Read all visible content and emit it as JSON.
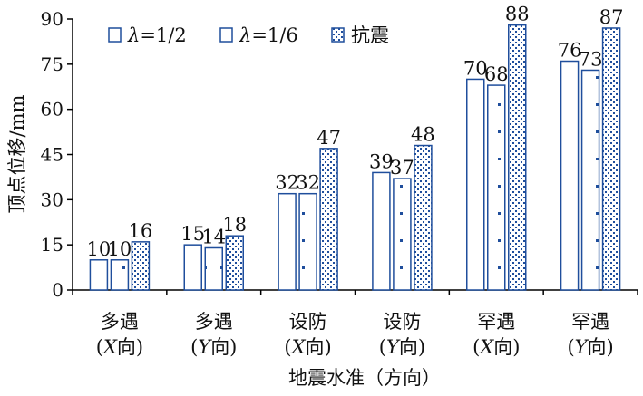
{
  "chart_data": {
    "type": "bar",
    "title": "",
    "xlabel": "地震水准（方向）",
    "ylabel": "顶点位移/mm",
    "ylim": [
      0,
      90
    ],
    "yticks": [
      0,
      15,
      30,
      45,
      60,
      75,
      90
    ],
    "grid": false,
    "legend_position": "top-left",
    "categories": [
      {
        "line1": "多遇",
        "line2_prefix": "(",
        "line2_axis": "X",
        "line2_suffix": "向)"
      },
      {
        "line1": "多遇",
        "line2_prefix": "(",
        "line2_axis": "Y",
        "line2_suffix": "向)"
      },
      {
        "line1": "设防",
        "line2_prefix": "(",
        "line2_axis": "X",
        "line2_suffix": "向)"
      },
      {
        "line1": "设防",
        "line2_prefix": "(",
        "line2_axis": "Y",
        "line2_suffix": "向)"
      },
      {
        "line1": "罕遇",
        "line2_prefix": "(",
        "line2_axis": "X",
        "line2_suffix": "向)"
      },
      {
        "line1": "罕遇",
        "line2_prefix": "(",
        "line2_axis": "Y",
        "line2_suffix": "向)"
      }
    ],
    "series": [
      {
        "name": "λ=1/2",
        "symbol": "λ",
        "name_rest": "=1/2",
        "pattern": "hollow",
        "values": [
          10,
          15,
          32,
          39,
          70,
          76
        ]
      },
      {
        "name": "λ=1/6",
        "symbol": "λ",
        "name_rest": "=1/6",
        "pattern": "sparse-dots",
        "values": [
          10,
          14,
          32,
          37,
          68,
          73
        ]
      },
      {
        "name": "抗震",
        "symbol": "",
        "name_rest": "抗震",
        "pattern": "dense-dots",
        "values": [
          16,
          18,
          47,
          48,
          88,
          87
        ]
      }
    ],
    "colors": {
      "bar_stroke": "#1f4e9c",
      "dot_fill": "#1f4e9c",
      "axis": "#000000",
      "text": "#111111"
    }
  }
}
